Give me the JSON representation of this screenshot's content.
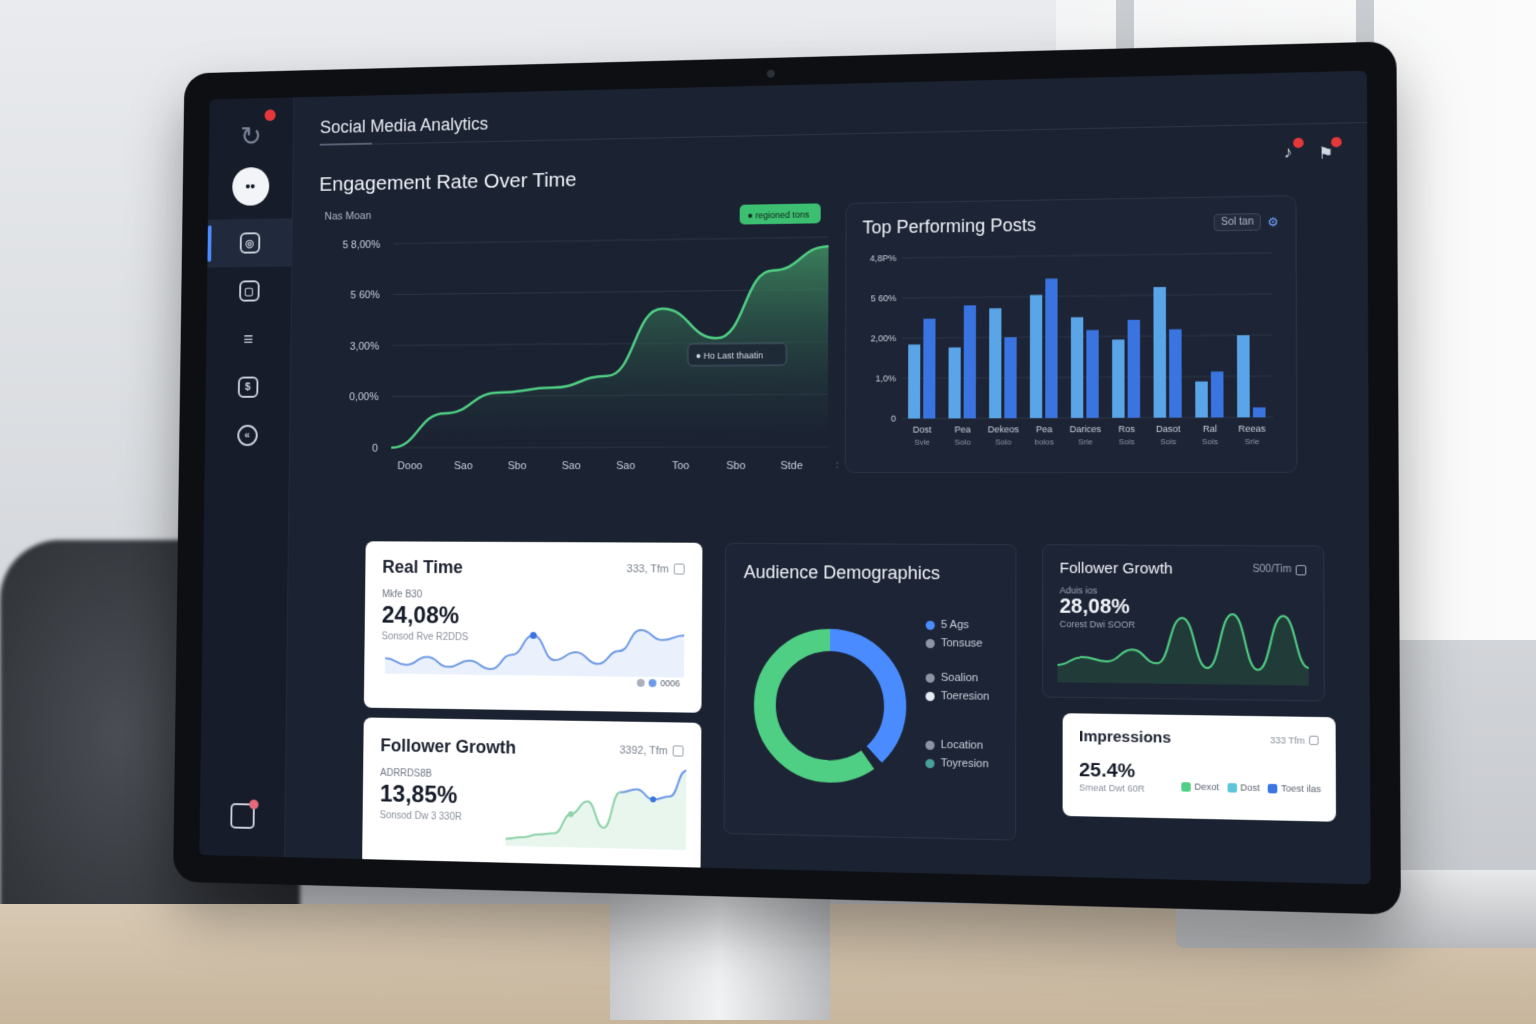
{
  "app": {
    "title": "Social Media Analytics"
  },
  "sidebar": {
    "logo_icon": "refresh-icon",
    "avatar_text": "••",
    "items": [
      {
        "name": "instagram-icon",
        "glyph": "◎",
        "active": true
      },
      {
        "name": "media-icon",
        "glyph": "▢",
        "active": false
      },
      {
        "name": "sliders-icon",
        "glyph": "≡",
        "active": false
      },
      {
        "name": "share-icon",
        "glyph": "$",
        "active": false
      },
      {
        "name": "clock-icon",
        "glyph": "«",
        "active": false
      }
    ],
    "bottom_icon": "notes-icon"
  },
  "header": {
    "icons": [
      "bell-icon",
      "flag-icon"
    ]
  },
  "engagement": {
    "title": "Engagement Rate Over Time",
    "subtitle": "Nas Moan",
    "callout_top": "● regioned tons",
    "callout_mid": "● Ho Last thaatin",
    "colors": {
      "line": "#4fcf83",
      "fill_top": "#2f6a4e"
    }
  },
  "top_posts": {
    "title": "Top Performing Posts",
    "filter_label": "Sol tan",
    "filter_icon": "gear-icon",
    "colors": {
      "light": "#5aa4e8",
      "dark": "#3a74e0"
    }
  },
  "real_time": {
    "title": "Real Time",
    "meta": "333, Tfm",
    "sub": "Mkfe B30",
    "value": "24,08%",
    "note": "Sonsod Rve R2DDS",
    "legend": "0006"
  },
  "follower_growth_white": {
    "title": "Follower Growth",
    "meta": "3392, Tfm",
    "sub": "ADRRDS8B",
    "value": "13,85%",
    "note": "Sonsod Dw 3 330R"
  },
  "demographics": {
    "title": "Audience Demographics",
    "legend": [
      {
        "label": "5 Ags",
        "color": "#4a8cff"
      },
      {
        "label": "Tonsuse",
        "color": "#8d95a5"
      },
      {
        "label": "Soalion",
        "color": "#8d95a5"
      },
      {
        "label": "Toeresion",
        "color": "#e8ecf3"
      },
      {
        "label": "Location",
        "color": "#8d95a5"
      },
      {
        "label": "Toyresion",
        "color": "#4a9f9a"
      }
    ]
  },
  "follower_growth_dark": {
    "title": "Follower Growth",
    "meta": "S00/Tim",
    "sub": "Aduis ios",
    "value": "28,08%",
    "note": "Corest Dwi SOOR"
  },
  "impressions": {
    "title": "Impressions",
    "meta": "333 Tfm",
    "value": "25.4%",
    "note": "Smeat Dwt 60R",
    "legend": [
      {
        "label": "Dexot",
        "color": "#4fcf83"
      },
      {
        "label": "Dost",
        "color": "#5ec6d8"
      },
      {
        "label": "Toest ilas",
        "color": "#3a74e0"
      }
    ]
  },
  "chart_data": [
    {
      "type": "area",
      "title": "Engagement Rate Over Time",
      "x": [
        "Dooo",
        "Sao",
        "Sbo",
        "Sao",
        "Sao",
        "Too",
        "Sbo",
        "Stde",
        "Stod"
      ],
      "y_ticks": [
        "0",
        "0,00%",
        "3,00%",
        "5 60%",
        "5 8,00%"
      ],
      "values": [
        0.0,
        1.5,
        2.4,
        2.6,
        3.1,
        6.0,
        4.7,
        7.6,
        8.6
      ],
      "ylim": [
        0,
        9
      ]
    },
    {
      "type": "bar",
      "title": "Top Performing Posts",
      "y_ticks": [
        "0",
        "1,0%",
        "2,00%",
        "5 60%",
        "4,8P%"
      ],
      "categories": [
        "Dost Svle",
        "Pea Solo",
        "Dekeos Solo",
        "Pea bolos",
        "Darices Srle",
        "Ros Sols",
        "Dasot Sols",
        "Ral Sols",
        "Reeas Srle"
      ],
      "series": [
        {
          "name": "",
          "values": [
            2.3,
            2.2,
            3.4,
            3.8,
            3.1,
            2.4,
            4.0,
            1.1,
            2.5
          ]
        },
        {
          "name": "",
          "values": [
            3.1,
            3.5,
            2.5,
            4.3,
            2.7,
            3.0,
            2.7,
            1.4,
            0.3
          ]
        }
      ],
      "ylim": [
        0,
        5
      ]
    },
    {
      "type": "pie",
      "title": "Audience Demographics",
      "slices": [
        {
          "label": "5 Ags",
          "value": 38,
          "color": "#4a8cff"
        },
        {
          "label": "Toeresion",
          "value": 2,
          "color": "#1d2435"
        },
        {
          "label": "Location",
          "value": 60,
          "color": "#4fcf83"
        }
      ]
    },
    {
      "type": "line",
      "title": "Real Time",
      "values": [
        3,
        2.6,
        3.1,
        2.5,
        2.9,
        2.4,
        3.3,
        4.5,
        3.0,
        3.5,
        2.8,
        3.6,
        4.9,
        4.3,
        4.6
      ]
    },
    {
      "type": "line",
      "title": "Follower Growth",
      "values": [
        0.2,
        0.3,
        0.5,
        0.6,
        1.8,
        2.6,
        1.0,
        3.2,
        3.4,
        2.8,
        3.0,
        4.6
      ]
    },
    {
      "type": "area",
      "title": "Follower Growth",
      "values": [
        1.0,
        1.6,
        1.3,
        2.2,
        1.2,
        4.6,
        0.9,
        4.9,
        0.8,
        4.8,
        1.0
      ]
    }
  ]
}
